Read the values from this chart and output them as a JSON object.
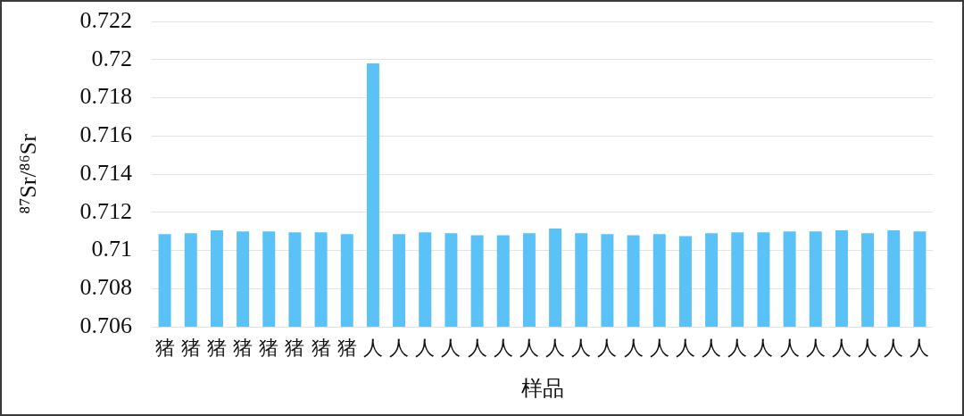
{
  "chart_data": {
    "type": "bar",
    "xlabel": "样品",
    "ylabel": "⁸⁷Sr/⁸⁶Sr",
    "categories": [
      "猪",
      "猪",
      "猪",
      "猪",
      "猪",
      "猪",
      "猪",
      "猪",
      "人",
      "人",
      "人",
      "人",
      "人",
      "人",
      "人",
      "人",
      "人",
      "人",
      "人",
      "人",
      "人",
      "人",
      "人",
      "人",
      "人",
      "人",
      "人",
      "人",
      "人",
      "人"
    ],
    "values": [
      0.71085,
      0.7109,
      0.71105,
      0.711,
      0.711,
      0.71095,
      0.71095,
      0.71085,
      0.7198,
      0.71085,
      0.71095,
      0.7109,
      0.7108,
      0.7108,
      0.7109,
      0.71115,
      0.7109,
      0.71085,
      0.7108,
      0.71085,
      0.71075,
      0.7109,
      0.71095,
      0.71095,
      0.711,
      0.711,
      0.71105,
      0.7109,
      0.71105,
      0.711
    ],
    "color": "#5bc2f7",
    "ylim": [
      0.706,
      0.722
    ],
    "yticks": [
      0.706,
      0.708,
      0.71,
      0.712,
      0.714,
      0.716,
      0.718,
      0.72,
      0.722
    ],
    "grid": "y",
    "legend": false
  }
}
